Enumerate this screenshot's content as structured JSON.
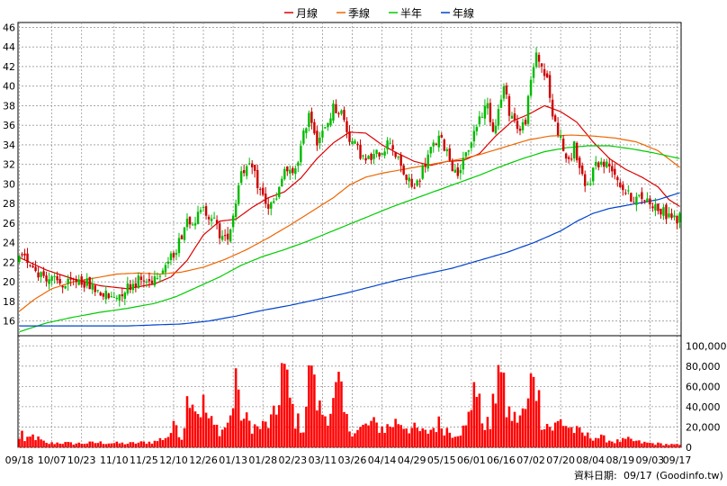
{
  "chart_data": {
    "type": "candlestick",
    "legend": {
      "placement": "top-center",
      "items": [
        {
          "name": "月線",
          "color": "#dd0000"
        },
        {
          "name": "季線",
          "color": "#ee6600"
        },
        {
          "name": "半年",
          "color": "#00cc00"
        },
        {
          "name": "年線",
          "color": "#0044cc"
        }
      ]
    },
    "price_axis": {
      "min": 14.5,
      "max": 46.5,
      "ticks": [
        16,
        18,
        20,
        22,
        24,
        26,
        28,
        30,
        32,
        34,
        36,
        38,
        40,
        42,
        44,
        46
      ],
      "side": "left"
    },
    "volume_axis": {
      "min": 0,
      "max": 110000,
      "ticks": [
        0,
        20000,
        40000,
        60000,
        80000,
        100000
      ],
      "tick_labels": [
        "0",
        "20,000",
        "40,000",
        "60,000",
        "80,000",
        "100,000"
      ],
      "side": "right"
    },
    "x_labels": [
      {
        "label": "09/18",
        "idx": 0
      },
      {
        "label": "10/07",
        "idx": 12
      },
      {
        "label": "10/23",
        "idx": 23
      },
      {
        "label": "11/10",
        "idx": 35
      },
      {
        "label": "11/25",
        "idx": 46
      },
      {
        "label": "12/10",
        "idx": 57
      },
      {
        "label": "12/26",
        "idx": 68
      },
      {
        "label": "01/13",
        "idx": 79
      },
      {
        "label": "01/28",
        "idx": 90
      },
      {
        "label": "02/23",
        "idx": 101
      },
      {
        "label": "03/11",
        "idx": 112
      },
      {
        "label": "03/26",
        "idx": 123
      },
      {
        "label": "04/14",
        "idx": 134
      },
      {
        "label": "04/29",
        "idx": 145
      },
      {
        "label": "05/15",
        "idx": 156
      },
      {
        "label": "06/01",
        "idx": 167
      },
      {
        "label": "06/16",
        "idx": 178
      },
      {
        "label": "07/02",
        "idx": 189
      },
      {
        "label": "07/20",
        "idx": 200
      },
      {
        "label": "08/04",
        "idx": 211
      },
      {
        "label": "08/19",
        "idx": 222
      },
      {
        "label": "09/03",
        "idx": 233
      },
      {
        "label": "09/17",
        "idx": 243
      }
    ],
    "n_bars": 245,
    "price_keypoints": [
      [
        0,
        22.2
      ],
      [
        3,
        22.3
      ],
      [
        7,
        21.0
      ],
      [
        12,
        20.2
      ],
      [
        17,
        19.6
      ],
      [
        22,
        20.3
      ],
      [
        26,
        19.6
      ],
      [
        30,
        18.9
      ],
      [
        34,
        18.3
      ],
      [
        37,
        18.8
      ],
      [
        40,
        19.5
      ],
      [
        44,
        20.2
      ],
      [
        48,
        20.0
      ],
      [
        52,
        21.2
      ],
      [
        56,
        22.4
      ],
      [
        59,
        24.1
      ],
      [
        62,
        26.5
      ],
      [
        65,
        26.4
      ],
      [
        68,
        27.3
      ],
      [
        71,
        26.8
      ],
      [
        74,
        24.9
      ],
      [
        76,
        24.2
      ],
      [
        78,
        25.6
      ],
      [
        80,
        28.3
      ],
      [
        82,
        31.6
      ],
      [
        86,
        31.5
      ],
      [
        89,
        29.3
      ],
      [
        92,
        27.6
      ],
      [
        95,
        28.3
      ],
      [
        98,
        31.5
      ],
      [
        101,
        30.8
      ],
      [
        104,
        33.6
      ],
      [
        107,
        37.5
      ],
      [
        110,
        34.5
      ],
      [
        113,
        35.5
      ],
      [
        116,
        37.8
      ],
      [
        119,
        37.3
      ],
      [
        122,
        34.7
      ],
      [
        125,
        33.5
      ],
      [
        128,
        32.3
      ],
      [
        131,
        32.8
      ],
      [
        134,
        33.5
      ],
      [
        137,
        34.5
      ],
      [
        140,
        32.3
      ],
      [
        143,
        30.5
      ],
      [
        146,
        29.5
      ],
      [
        149,
        31.5
      ],
      [
        152,
        33.5
      ],
      [
        155,
        34.6
      ],
      [
        158,
        33.5
      ],
      [
        161,
        31.0
      ],
      [
        164,
        32.1
      ],
      [
        167,
        34.5
      ],
      [
        170,
        36.8
      ],
      [
        173,
        38.1
      ],
      [
        175,
        35.5
      ],
      [
        177,
        37.5
      ],
      [
        179,
        39.8
      ],
      [
        181,
        37.5
      ],
      [
        183,
        36.5
      ],
      [
        185,
        35.4
      ],
      [
        187,
        36.6
      ],
      [
        189,
        40.3
      ],
      [
        191,
        43.5
      ],
      [
        193,
        42.0
      ],
      [
        195,
        40.5
      ],
      [
        197,
        37.0
      ],
      [
        199,
        35.5
      ],
      [
        201,
        33.5
      ],
      [
        203,
        32.0
      ],
      [
        205,
        34.0
      ],
      [
        207,
        31.5
      ],
      [
        209,
        29.5
      ],
      [
        211,
        30.5
      ],
      [
        213,
        32.3
      ],
      [
        216,
        32.0
      ],
      [
        219,
        31.8
      ],
      [
        222,
        30.0
      ],
      [
        225,
        28.8
      ],
      [
        228,
        28.5
      ],
      [
        231,
        28.6
      ],
      [
        234,
        28.0
      ],
      [
        237,
        27.2
      ],
      [
        240,
        26.8
      ],
      [
        243,
        26.3
      ],
      [
        244,
        26.5
      ]
    ],
    "moving_averages": {
      "月線": [
        [
          0,
          22.5
        ],
        [
          10,
          21.2
        ],
        [
          20,
          20.3
        ],
        [
          30,
          19.6
        ],
        [
          40,
          19.3
        ],
        [
          50,
          19.8
        ],
        [
          56,
          20.5
        ],
        [
          62,
          22.2
        ],
        [
          68,
          24.8
        ],
        [
          74,
          26.2
        ],
        [
          80,
          26.4
        ],
        [
          86,
          27.6
        ],
        [
          92,
          28.6
        ],
        [
          98,
          29.2
        ],
        [
          104,
          30.6
        ],
        [
          110,
          32.6
        ],
        [
          116,
          34.2
        ],
        [
          122,
          35.3
        ],
        [
          128,
          35.2
        ],
        [
          134,
          34.0
        ],
        [
          140,
          33.1
        ],
        [
          146,
          32.3
        ],
        [
          152,
          31.9
        ],
        [
          158,
          32.3
        ],
        [
          164,
          32.4
        ],
        [
          170,
          33.1
        ],
        [
          176,
          34.9
        ],
        [
          182,
          36.4
        ],
        [
          188,
          37.1
        ],
        [
          194,
          38.0
        ],
        [
          200,
          37.4
        ],
        [
          206,
          36.3
        ],
        [
          212,
          34.3
        ],
        [
          218,
          32.6
        ],
        [
          224,
          31.5
        ],
        [
          230,
          30.7
        ],
        [
          236,
          29.7
        ],
        [
          240,
          28.4
        ],
        [
          244,
          27.7
        ]
      ],
      "季線": [
        [
          0,
          17.0
        ],
        [
          6,
          18.3
        ],
        [
          12,
          19.3
        ],
        [
          20,
          20.0
        ],
        [
          28,
          20.4
        ],
        [
          36,
          20.8
        ],
        [
          44,
          20.9
        ],
        [
          52,
          20.8
        ],
        [
          60,
          21.0
        ],
        [
          68,
          21.5
        ],
        [
          76,
          22.3
        ],
        [
          84,
          23.3
        ],
        [
          92,
          24.5
        ],
        [
          100,
          25.8
        ],
        [
          108,
          27.2
        ],
        [
          116,
          28.6
        ],
        [
          122,
          29.9
        ],
        [
          128,
          30.7
        ],
        [
          134,
          31.1
        ],
        [
          140,
          31.4
        ],
        [
          146,
          31.7
        ],
        [
          152,
          32.0
        ],
        [
          158,
          32.3
        ],
        [
          164,
          32.6
        ],
        [
          170,
          33.0
        ],
        [
          176,
          33.5
        ],
        [
          182,
          34.0
        ],
        [
          188,
          34.5
        ],
        [
          196,
          34.9
        ],
        [
          204,
          35.0
        ],
        [
          212,
          34.9
        ],
        [
          220,
          34.7
        ],
        [
          228,
          34.3
        ],
        [
          236,
          33.4
        ],
        [
          244,
          31.7
        ]
      ],
      "半年": [
        [
          0,
          14.9
        ],
        [
          10,
          15.8
        ],
        [
          20,
          16.4
        ],
        [
          30,
          16.9
        ],
        [
          40,
          17.3
        ],
        [
          50,
          17.8
        ],
        [
          58,
          18.5
        ],
        [
          66,
          19.5
        ],
        [
          74,
          20.5
        ],
        [
          82,
          21.7
        ],
        [
          90,
          22.6
        ],
        [
          98,
          23.3
        ],
        [
          106,
          24.1
        ],
        [
          114,
          25.0
        ],
        [
          122,
          25.9
        ],
        [
          130,
          26.8
        ],
        [
          138,
          27.7
        ],
        [
          146,
          28.5
        ],
        [
          154,
          29.3
        ],
        [
          162,
          30.1
        ],
        [
          170,
          30.9
        ],
        [
          178,
          31.8
        ],
        [
          186,
          32.6
        ],
        [
          194,
          33.3
        ],
        [
          202,
          33.7
        ],
        [
          210,
          33.9
        ],
        [
          218,
          33.9
        ],
        [
          226,
          33.6
        ],
        [
          234,
          33.2
        ],
        [
          244,
          32.6
        ]
      ],
      "年線": [
        [
          0,
          15.5
        ],
        [
          20,
          15.5
        ],
        [
          40,
          15.5
        ],
        [
          60,
          15.7
        ],
        [
          70,
          16.0
        ],
        [
          80,
          16.5
        ],
        [
          90,
          17.1
        ],
        [
          100,
          17.6
        ],
        [
          110,
          18.2
        ],
        [
          120,
          18.8
        ],
        [
          130,
          19.5
        ],
        [
          140,
          20.2
        ],
        [
          150,
          20.8
        ],
        [
          160,
          21.4
        ],
        [
          170,
          22.2
        ],
        [
          180,
          23.0
        ],
        [
          190,
          24.0
        ],
        [
          200,
          25.2
        ],
        [
          206,
          26.2
        ],
        [
          212,
          27.0
        ],
        [
          218,
          27.5
        ],
        [
          224,
          27.8
        ],
        [
          230,
          28.1
        ],
        [
          236,
          28.4
        ],
        [
          244,
          29.1
        ]
      ]
    },
    "volume_keypoints": [
      [
        0,
        8000
      ],
      [
        1,
        21000
      ],
      [
        2,
        6000
      ],
      [
        5,
        12000
      ],
      [
        10,
        4000
      ],
      [
        15,
        5000
      ],
      [
        20,
        4000
      ],
      [
        30,
        5000
      ],
      [
        40,
        4000
      ],
      [
        50,
        6000
      ],
      [
        55,
        12000
      ],
      [
        58,
        25000
      ],
      [
        60,
        10000
      ],
      [
        62,
        48000
      ],
      [
        63,
        70000
      ],
      [
        64,
        55000
      ],
      [
        66,
        38000
      ],
      [
        68,
        45000
      ],
      [
        70,
        30000
      ],
      [
        72,
        22000
      ],
      [
        75,
        18000
      ],
      [
        78,
        30000
      ],
      [
        79,
        50000
      ],
      [
        80,
        85000
      ],
      [
        81,
        45000
      ],
      [
        83,
        30000
      ],
      [
        88,
        20000
      ],
      [
        92,
        25000
      ],
      [
        95,
        35000
      ],
      [
        96,
        60000
      ],
      [
        97,
        85000
      ],
      [
        98,
        78000
      ],
      [
        100,
        50000
      ],
      [
        102,
        30000
      ],
      [
        105,
        20000
      ],
      [
        107,
        70000
      ],
      [
        108,
        103000
      ],
      [
        109,
        60000
      ],
      [
        111,
        40000
      ],
      [
        113,
        35000
      ],
      [
        116,
        45000
      ],
      [
        118,
        65000
      ],
      [
        120,
        35000
      ],
      [
        122,
        20000
      ],
      [
        125,
        18000
      ],
      [
        130,
        25000
      ],
      [
        135,
        20000
      ],
      [
        140,
        28000
      ],
      [
        145,
        20000
      ],
      [
        150,
        15000
      ],
      [
        155,
        25000
      ],
      [
        160,
        15000
      ],
      [
        165,
        20000
      ],
      [
        167,
        45000
      ],
      [
        168,
        90000
      ],
      [
        169,
        55000
      ],
      [
        171,
        30000
      ],
      [
        174,
        22000
      ],
      [
        176,
        60000
      ],
      [
        177,
        110000
      ],
      [
        178,
        75000
      ],
      [
        180,
        40000
      ],
      [
        183,
        30000
      ],
      [
        186,
        35000
      ],
      [
        188,
        45000
      ],
      [
        190,
        92000
      ],
      [
        191,
        70000
      ],
      [
        193,
        30000
      ],
      [
        197,
        20000
      ],
      [
        200,
        28000
      ],
      [
        205,
        18000
      ],
      [
        210,
        12000
      ],
      [
        215,
        10000
      ],
      [
        220,
        6000
      ],
      [
        225,
        8000
      ],
      [
        230,
        5000
      ],
      [
        235,
        4000
      ],
      [
        240,
        3000
      ],
      [
        244,
        2500
      ]
    ],
    "date_note": {
      "label": "資料日期:",
      "date": "09/17",
      "source": "(Goodinfo.tw)"
    }
  }
}
